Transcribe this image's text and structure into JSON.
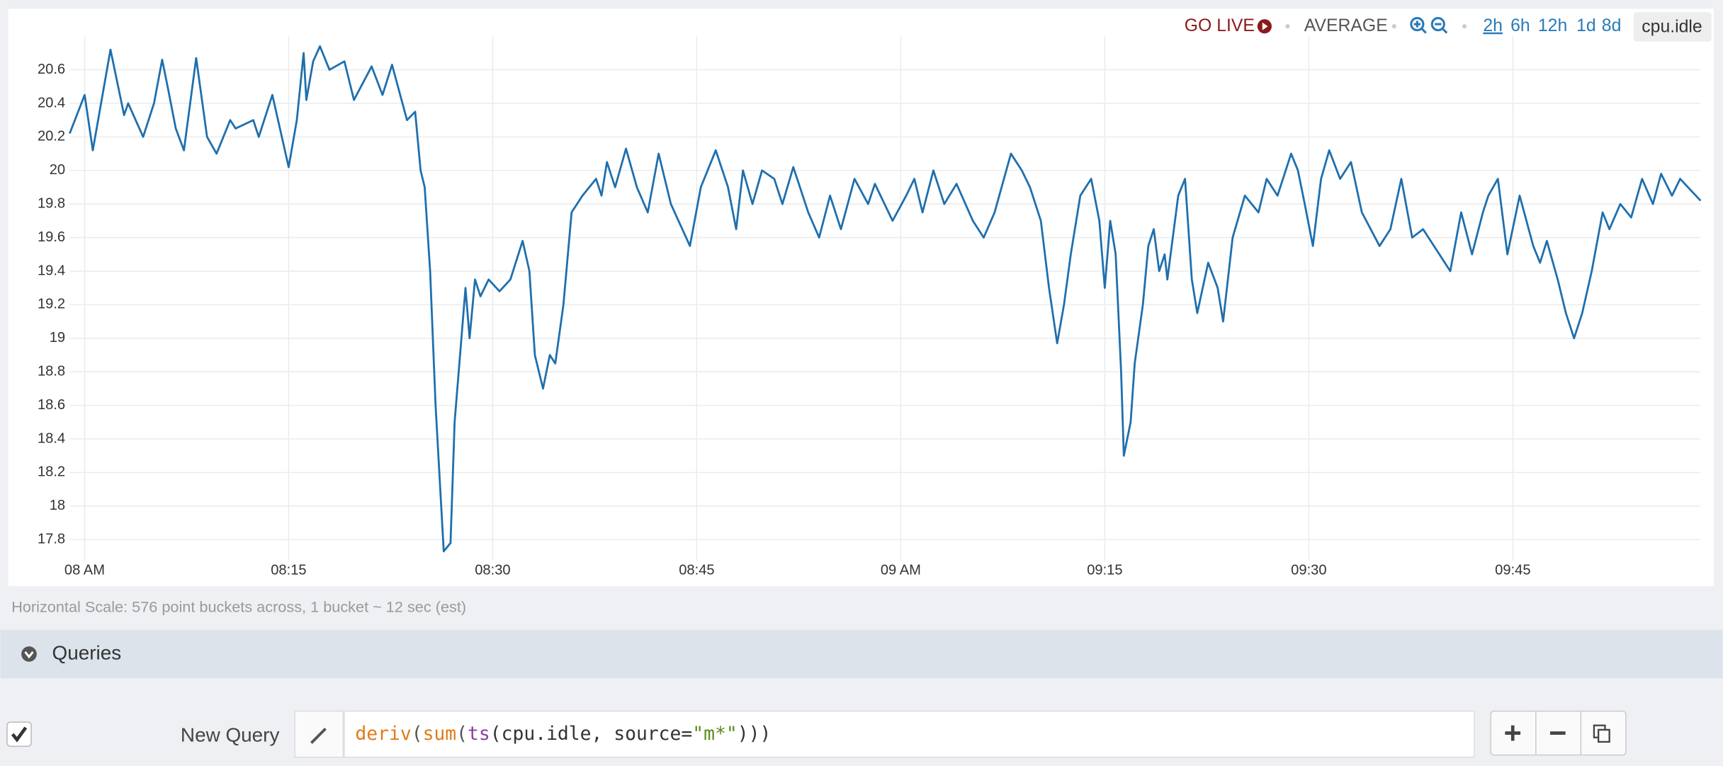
{
  "toolbar": {
    "go_live": "GO LIVE",
    "aggregation": "AVERAGE",
    "ranges": [
      "2h",
      "6h",
      "12h",
      "1d",
      "8d"
    ],
    "metric": "cpu.idle"
  },
  "chart_data": {
    "type": "line",
    "x": [
      -1.1,
      0,
      0.6,
      1.9,
      2.9,
      3.2,
      4.3,
      5.1,
      5.7,
      6.1,
      6.7,
      7.3,
      8.2,
      9.0,
      9.7,
      10.7,
      11.1,
      12.4,
      12.8,
      13.8,
      15.0,
      15.6,
      16.1,
      16.3,
      16.8,
      17.3,
      18.0,
      19.1,
      19.8,
      21.1,
      21.9,
      22.6,
      23.7,
      24.3,
      24.7,
      25.0,
      25.4,
      25.8,
      26.4,
      26.9,
      27.2,
      27.7,
      28.0,
      28.3,
      28.7,
      29.1,
      29.7,
      30.5,
      31.3,
      32.2,
      32.7,
      33.1,
      33.7,
      34.2,
      34.6,
      35.2,
      35.8,
      36.6,
      37.6,
      38.0,
      38.4,
      39.0,
      39.8,
      40.6,
      41.4,
      42.2,
      43.1,
      44.5,
      45.3,
      46.4,
      47.3,
      47.9,
      48.4,
      49.1,
      49.8,
      50.7,
      51.3,
      52.1,
      53.2,
      54.0,
      54.8,
      55.6,
      56.6,
      57.6,
      58.1,
      59.4,
      60.4,
      61.0,
      61.6,
      62.4,
      63.2,
      64.1,
      65.3,
      66.1,
      66.9,
      68.1,
      68.9,
      69.5,
      70.3,
      70.9,
      71.5,
      72.0,
      72.5,
      73.2,
      74.0,
      74.6,
      75.0,
      75.4,
      75.8,
      76.2,
      76.4,
      76.9,
      77.2,
      77.8,
      78.2,
      78.6,
      79.0,
      79.4,
      79.6,
      80.4,
      80.9,
      81.4,
      81.8,
      82.6,
      83.3,
      83.7,
      84.4,
      85.3,
      86.3,
      86.9,
      87.7,
      88.7,
      89.2,
      89.7,
      90.3,
      90.9,
      91.5,
      92.3,
      93.1,
      93.9,
      95.2,
      96.0,
      96.8,
      97.6,
      98.4,
      99.6,
      100.4,
      101.2,
      102.0,
      102.8,
      103.2,
      103.9,
      104.6,
      105.5,
      106.5,
      107.0,
      107.5,
      108.3,
      108.9,
      109.5,
      110.1,
      110.8,
      111.6,
      112.1,
      112.9,
      113.7,
      114.5,
      115.3,
      115.9,
      116.7,
      117.3,
      118.8
    ],
    "series": [
      {
        "name": "cpu.idle",
        "color": "#1f6fad",
        "values": [
          20.22,
          20.45,
          20.12,
          20.72,
          20.33,
          20.4,
          20.2,
          20.4,
          20.66,
          20.5,
          20.25,
          20.12,
          20.67,
          20.2,
          20.1,
          20.3,
          20.25,
          20.3,
          20.2,
          20.45,
          20.02,
          20.3,
          20.7,
          20.42,
          20.65,
          20.74,
          20.6,
          20.65,
          20.42,
          20.62,
          20.45,
          20.63,
          20.3,
          20.35,
          20.0,
          19.9,
          19.4,
          18.6,
          17.73,
          17.78,
          18.5,
          19.0,
          19.3,
          19.0,
          19.35,
          19.25,
          19.35,
          19.28,
          19.35,
          19.58,
          19.4,
          18.9,
          18.7,
          18.9,
          18.85,
          19.2,
          19.75,
          19.85,
          19.95,
          19.85,
          20.05,
          19.9,
          20.13,
          19.9,
          19.75,
          20.1,
          19.8,
          19.55,
          19.9,
          20.12,
          19.9,
          19.65,
          20.0,
          19.8,
          20.0,
          19.95,
          19.8,
          20.02,
          19.75,
          19.6,
          19.85,
          19.65,
          19.95,
          19.8,
          19.92,
          19.7,
          19.85,
          19.95,
          19.75,
          20.0,
          19.8,
          19.92,
          19.7,
          19.6,
          19.75,
          20.1,
          20.0,
          19.9,
          19.7,
          19.3,
          18.97,
          19.2,
          19.5,
          19.85,
          19.95,
          19.7,
          19.3,
          19.7,
          19.5,
          18.8,
          18.3,
          18.5,
          18.85,
          19.2,
          19.55,
          19.65,
          19.4,
          19.5,
          19.35,
          19.85,
          19.95,
          19.35,
          19.15,
          19.45,
          19.3,
          19.1,
          19.6,
          19.85,
          19.75,
          19.95,
          19.85,
          20.1,
          20.0,
          19.8,
          19.55,
          19.95,
          20.12,
          19.95,
          20.05,
          19.75,
          19.55,
          19.65,
          19.95,
          19.6,
          19.65,
          19.5,
          19.4,
          19.75,
          19.5,
          19.75,
          19.85,
          19.95,
          19.5,
          19.85,
          19.55,
          19.45,
          19.58,
          19.35,
          19.15,
          19.0,
          19.15,
          19.4,
          19.75,
          19.65,
          19.8,
          19.72,
          19.95,
          19.8,
          19.98,
          19.85,
          19.95,
          19.82
        ]
      }
    ],
    "xlim": [
      -1.1,
      118.8
    ],
    "xticks": [
      {
        "value": 0,
        "label": "08 AM"
      },
      {
        "value": 15,
        "label": "08:15"
      },
      {
        "value": 30,
        "label": "08:30"
      },
      {
        "value": 45,
        "label": "08:45"
      },
      {
        "value": 60,
        "label": "09 AM"
      },
      {
        "value": 75,
        "label": "09:15"
      },
      {
        "value": 90,
        "label": "09:30"
      },
      {
        "value": 105,
        "label": "09:45"
      }
    ],
    "ylim": [
      17.7,
      20.8
    ],
    "yticks": [
      17.8,
      18,
      18.2,
      18.4,
      18.6,
      18.8,
      19,
      19.2,
      19.4,
      19.6,
      19.8,
      20,
      20.2,
      20.4,
      20.6
    ],
    "grid": true
  },
  "scale_note": "Horizontal Scale: 576 point buckets across, 1 bucket ~ 12 sec (est)",
  "queries": {
    "title": "Queries",
    "label": "New Query",
    "tokens": [
      "deriv",
      "(",
      "sum",
      "(",
      "ts",
      "(cpu.idle, source=",
      "\"m*\"",
      ")))"
    ]
  }
}
